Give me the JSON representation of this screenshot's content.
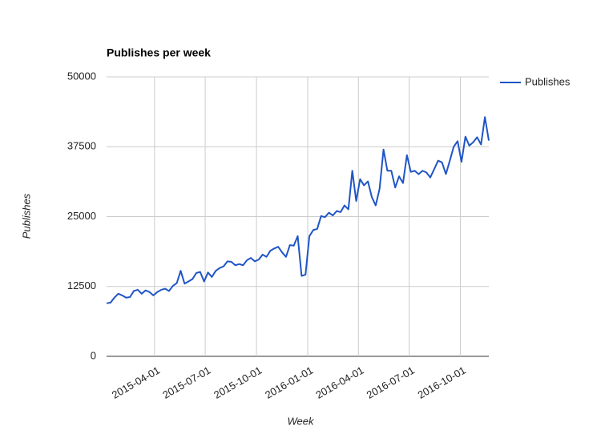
{
  "chart_data": {
    "type": "line",
    "title": "Publishes per week",
    "x_label": "Week",
    "y_label": "Publishes",
    "x": [
      "2015-01-05",
      "2015-01-12",
      "2015-01-19",
      "2015-01-26",
      "2015-02-02",
      "2015-02-09",
      "2015-02-16",
      "2015-02-23",
      "2015-03-02",
      "2015-03-09",
      "2015-03-16",
      "2015-03-23",
      "2015-03-30",
      "2015-04-06",
      "2015-04-13",
      "2015-04-20",
      "2015-04-27",
      "2015-05-04",
      "2015-05-11",
      "2015-05-18",
      "2015-05-25",
      "2015-06-01",
      "2015-06-08",
      "2015-06-15",
      "2015-06-22",
      "2015-06-29",
      "2015-07-06",
      "2015-07-13",
      "2015-07-20",
      "2015-07-27",
      "2015-08-03",
      "2015-08-10",
      "2015-08-17",
      "2015-08-24",
      "2015-08-31",
      "2015-09-07",
      "2015-09-14",
      "2015-09-21",
      "2015-09-28",
      "2015-10-05",
      "2015-10-12",
      "2015-10-19",
      "2015-10-26",
      "2015-11-02",
      "2015-11-09",
      "2015-11-16",
      "2015-11-23",
      "2015-11-30",
      "2015-12-07",
      "2015-12-14",
      "2015-12-21",
      "2015-12-28",
      "2016-01-04",
      "2016-01-11",
      "2016-01-18",
      "2016-01-25",
      "2016-02-01",
      "2016-02-08",
      "2016-02-15",
      "2016-02-22",
      "2016-02-29",
      "2016-03-07",
      "2016-03-14",
      "2016-03-21",
      "2016-03-28",
      "2016-04-04",
      "2016-04-11",
      "2016-04-18",
      "2016-04-25",
      "2016-05-02",
      "2016-05-09",
      "2016-05-16",
      "2016-05-23",
      "2016-05-30",
      "2016-06-06",
      "2016-06-13",
      "2016-06-20",
      "2016-06-27",
      "2016-07-04",
      "2016-07-11",
      "2016-07-18",
      "2016-07-25",
      "2016-08-01",
      "2016-08-08",
      "2016-08-15",
      "2016-08-22",
      "2016-08-29",
      "2016-09-05",
      "2016-09-12",
      "2016-09-19",
      "2016-09-26",
      "2016-10-03",
      "2016-10-10",
      "2016-10-17",
      "2016-10-24",
      "2016-10-31",
      "2016-11-07",
      "2016-11-14",
      "2016-11-21"
    ],
    "series": [
      {
        "name": "Publishes",
        "color": "#1f55c6",
        "values": [
          9500,
          9600,
          10500,
          11200,
          10900,
          10500,
          10600,
          11700,
          11900,
          11200,
          11800,
          11500,
          10900,
          11500,
          11900,
          12100,
          11700,
          12600,
          13100,
          15300,
          13000,
          13400,
          13800,
          14900,
          15100,
          13400,
          15000,
          14200,
          15300,
          15800,
          16100,
          17000,
          16900,
          16300,
          16500,
          16300,
          17200,
          17600,
          17000,
          17300,
          18200,
          17800,
          18900,
          19300,
          19600,
          18600,
          17800,
          19900,
          19800,
          21500,
          14400,
          14600,
          21500,
          22600,
          22800,
          25100,
          24900,
          25700,
          25200,
          26000,
          25800,
          27000,
          26300,
          33200,
          27800,
          31700,
          30600,
          31300,
          28500,
          27000,
          30000,
          37000,
          33200,
          33200,
          30200,
          32200,
          31000,
          36000,
          33000,
          33200,
          32600,
          33200,
          32900,
          32000,
          33500,
          35000,
          34700,
          32600,
          35000,
          37500,
          38500,
          34800,
          39300,
          37700,
          38300,
          39200,
          37900,
          42800,
          38600
        ]
      }
    ],
    "xlim": [
      "2015-01-05",
      "2016-11-21"
    ],
    "xticks": [
      "2015-04-01",
      "2015-07-01",
      "2015-10-01",
      "2016-01-01",
      "2016-04-01",
      "2016-07-01",
      "2016-10-01"
    ],
    "ylim": [
      0,
      50000
    ],
    "yticks": [
      0,
      12500,
      25000,
      37500,
      50000
    ],
    "grid": true,
    "legend": "right"
  }
}
